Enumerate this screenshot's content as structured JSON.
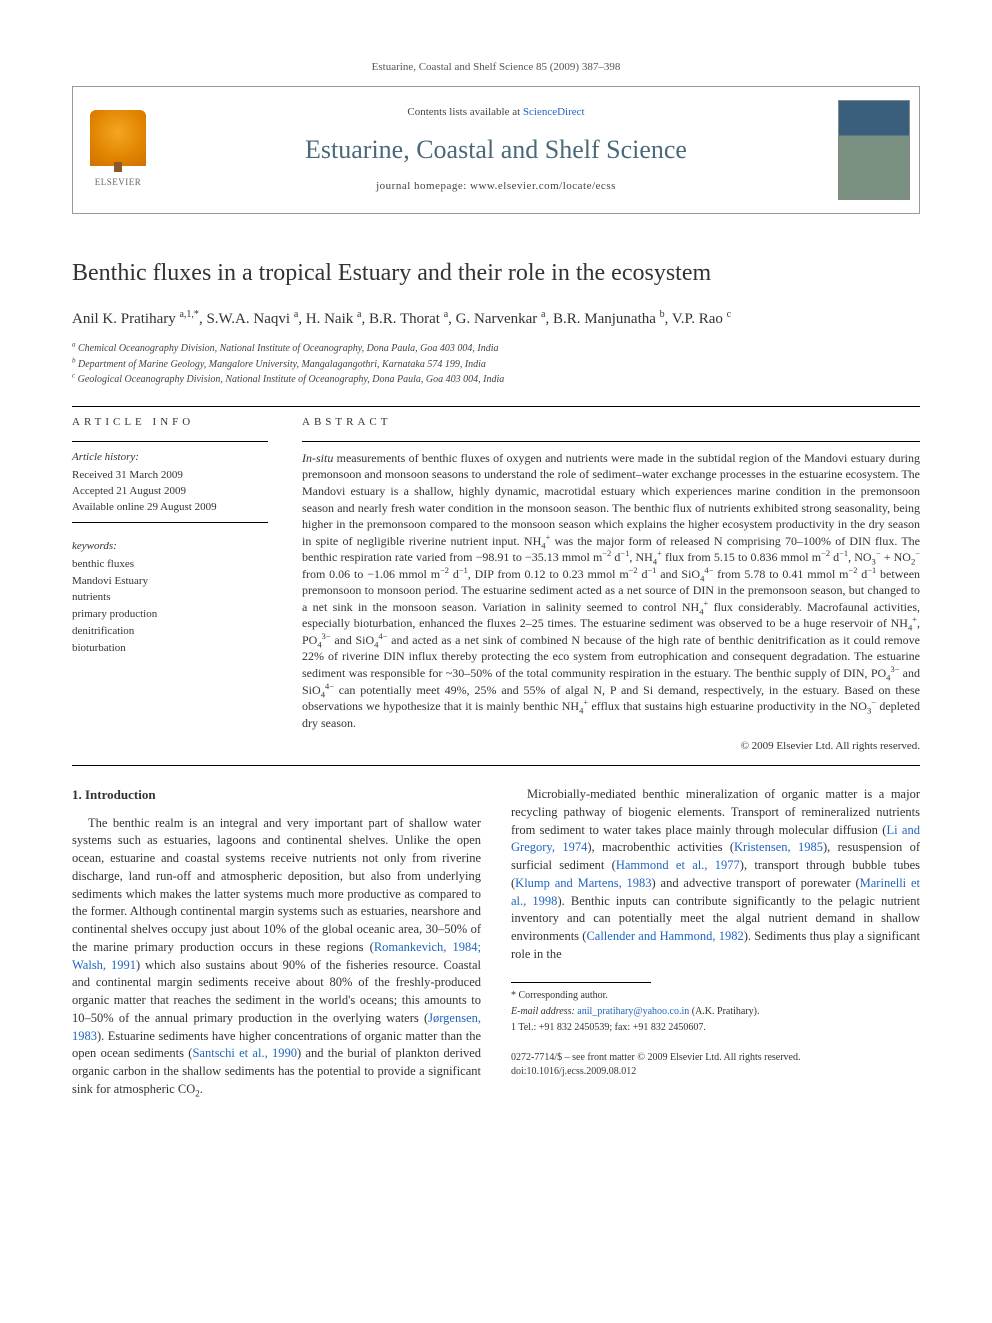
{
  "journal_ref": "Estuarine, Coastal and Shelf Science 85 (2009) 387–398",
  "header": {
    "contents_prefix": "Contents lists available at ",
    "contents_link": "ScienceDirect",
    "journal_title": "Estuarine, Coastal and Shelf Science",
    "homepage_prefix": "journal homepage: ",
    "homepage_url": "www.elsevier.com/locate/ecss",
    "elsevier_label": "ELSEVIER"
  },
  "article": {
    "title": "Benthic fluxes in a tropical Estuary and their role in the ecosystem",
    "authors_html": "Anil K. Pratihary <sup>a,1,*</sup>, S.W.A. Naqvi <sup>a</sup>, H. Naik <sup>a</sup>, B.R. Thorat <sup>a</sup>, G. Narvenkar <sup>a</sup>, B.R. Manjunatha <sup>b</sup>, V.P. Rao <sup>c</sup>",
    "affiliations": [
      "a Chemical Oceanography Division, National Institute of Oceanography, Dona Paula, Goa 403 004, India",
      "b Department of Marine Geology, Mangalore University, Mangalagangothri, Karnataka 574 199, India",
      "c Geological Oceanography Division, National Institute of Oceanography, Dona Paula, Goa 403 004, India"
    ]
  },
  "info": {
    "label": "ARTICLE INFO",
    "history_label": "Article history:",
    "history": [
      "Received 31 March 2009",
      "Accepted 21 August 2009",
      "Available online 29 August 2009"
    ],
    "keywords_label": "keywords:",
    "keywords": [
      "benthic fluxes",
      "Mandovi Estuary",
      "nutrients",
      "primary production",
      "denitrification",
      "bioturbation"
    ]
  },
  "abstract": {
    "label": "ABSTRACT",
    "text_html": "<i>In-situ</i> measurements of benthic fluxes of oxygen and nutrients were made in the subtidal region of the Mandovi estuary during premonsoon and monsoon seasons to understand the role of sediment–water exchange processes in the estuarine ecosystem. The Mandovi estuary is a shallow, highly dynamic, macrotidal estuary which experiences marine condition in the premonsoon season and nearly fresh water condition in the monsoon season. The benthic flux of nutrients exhibited strong seasonality, being higher in the premonsoon compared to the monsoon season which explains the higher ecosystem productivity in the dry season in spite of negligible riverine nutrient input. NH<sub>4</sub><sup>+</sup> was the major form of released N comprising 70–100% of DIN flux. The benthic respiration rate varied from −98.91 to −35.13 mmol m<sup>−2</sup> d<sup>−1</sup>, NH<sub>4</sub><sup>+</sup> flux from 5.15 to 0.836 mmol m<sup>−2</sup> d<sup>−1</sup>, NO<sub>3</sub><sup>−</sup> + NO<sub>2</sub><sup>−</sup> from 0.06 to −1.06 mmol m<sup>−2</sup> d<sup>−1</sup>, DIP from 0.12 to 0.23 mmol m<sup>−2</sup> d<sup>−1</sup> and SiO<sub>4</sub><sup>4−</sup> from 5.78 to 0.41 mmol m<sup>−2</sup> d<sup>−1</sup> between premonsoon to monsoon period. The estuarine sediment acted as a net source of DIN in the premonsoon season, but changed to a net sink in the monsoon season. Variation in salinity seemed to control NH<sub>4</sub><sup>+</sup> flux considerably. Macrofaunal activities, especially bioturbation, enhanced the fluxes 2–25 times. The estuarine sediment was observed to be a huge reservoir of NH<sub>4</sub><sup>+</sup>, PO<sub>4</sub><sup>3−</sup> and SiO<sub>4</sub><sup>4−</sup> and acted as a net sink of combined N because of the high rate of benthic denitrification as it could remove 22% of riverine DIN influx thereby protecting the eco system from eutrophication and consequent degradation. The estuarine sediment was responsible for ~30–50% of the total community respiration in the estuary. The benthic supply of DIN, PO<sub>4</sub><sup>3−</sup> and SiO<sub>4</sub><sup>4−</sup> can potentially meet 49%, 25% and 55% of algal N, P and Si demand, respectively, in the estuary. Based on these observations we hypothesize that it is mainly benthic NH<sub>4</sub><sup>+</sup> efflux that sustains high estuarine productivity in the NO<sub>3</sub><sup>−</sup> depleted dry season.",
    "copyright": "© 2009 Elsevier Ltd. All rights reserved."
  },
  "body": {
    "heading": "1. Introduction",
    "para1_html": "The benthic realm is an integral and very important part of shallow water systems such as estuaries, lagoons and continental shelves. Unlike the open ocean, estuarine and coastal systems receive nutrients not only from riverine discharge, land run-off and atmospheric deposition, but also from underlying sediments which makes the latter systems much more productive as compared to the former. Although continental margin systems such as estuaries, nearshore and continental shelves occupy just about 10% of the global oceanic area, 30–50% of the marine primary production occurs in these regions (<span class=\"ref-link\">Romankevich, 1984; Walsh, 1991</span>) which also sustains about 90% of the fisheries resource. Coastal and continental margin sediments receive about 80% of the freshly-produced organic matter that reaches the sediment in the world's oceans; this amounts to 10–50% of the annual primary production in the overlying waters (<span class=\"ref-link\">Jørgensen, 1983</span>). Estuarine sediments have higher concentrations of organic matter than the open ocean sediments (<span class=\"ref-link\">Santschi et al., 1990</span>) and the burial of plankton derived organic carbon in the shallow sediments has the potential to provide a significant sink for atmospheric CO<sub>2</sub>.",
    "para2_html": "Microbially-mediated benthic mineralization of organic matter is a major recycling pathway of biogenic elements. Transport of remineralized nutrients from sediment to water takes place mainly through molecular diffusion (<span class=\"ref-link\">Li and Gregory, 1974</span>), macrobenthic activities (<span class=\"ref-link\">Kristensen, 1985</span>), resuspension of surficial sediment (<span class=\"ref-link\">Hammond et al., 1977</span>), transport through bubble tubes (<span class=\"ref-link\">Klump and Martens, 1983</span>) and advective transport of porewater (<span class=\"ref-link\">Marinelli et al., 1998</span>). Benthic inputs can contribute significantly to the pelagic nutrient inventory and can potentially meet the algal nutrient demand in shallow environments (<span class=\"ref-link\">Callender and Hammond, 1982</span>). Sediments thus play a significant role in the"
  },
  "footnotes": {
    "corr": "* Corresponding author.",
    "email_label": "E-mail address: ",
    "email": "anil_pratihary@yahoo.co.in",
    "email_who": " (A.K. Pratihary).",
    "tel": "1  Tel.: +91 832 2450539; fax: +91 832 2450607."
  },
  "doi": {
    "line1": "0272-7714/$ – see front matter © 2009 Elsevier Ltd. All rights reserved.",
    "line2": "doi:10.1016/j.ecss.2009.08.012"
  },
  "colors": {
    "link": "#2066c0",
    "journal_title": "#4a6a7a",
    "text": "#333333",
    "border": "#999999"
  }
}
